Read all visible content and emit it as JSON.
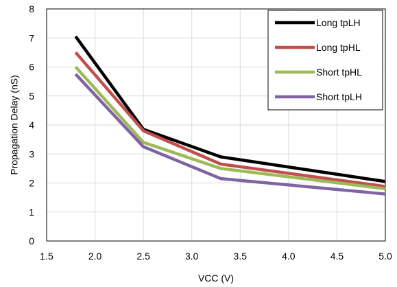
{
  "chart_data": {
    "type": "line",
    "title": "",
    "xlabel": "VCC (V)",
    "ylabel": "Propagation Delay  (nS)",
    "xlim": [
      1.5,
      5.0
    ],
    "ylim": [
      0,
      8
    ],
    "xticks": [
      "1.5",
      "2.0",
      "2.5",
      "3.0",
      "3.5",
      "4.0",
      "4.5",
      "5.0"
    ],
    "yticks": [
      "0",
      "1",
      "2",
      "3",
      "4",
      "5",
      "6",
      "7",
      "8"
    ],
    "grid": true,
    "legend_position": "top-right",
    "x": [
      1.8,
      2.5,
      3.3,
      5.0
    ],
    "series": [
      {
        "name": "Long tpLH",
        "color": "#000000",
        "values": [
          7.05,
          3.85,
          2.9,
          2.05
        ]
      },
      {
        "name": "Long tpHL",
        "color": "#c0504d",
        "values": [
          6.5,
          3.8,
          2.65,
          1.88
        ]
      },
      {
        "name": "Short tpHL",
        "color": "#9bbb59",
        "values": [
          6.0,
          3.4,
          2.5,
          1.8
        ]
      },
      {
        "name": "Short tpLH",
        "color": "#8064a2",
        "values": [
          5.75,
          3.25,
          2.15,
          1.62
        ]
      }
    ]
  }
}
